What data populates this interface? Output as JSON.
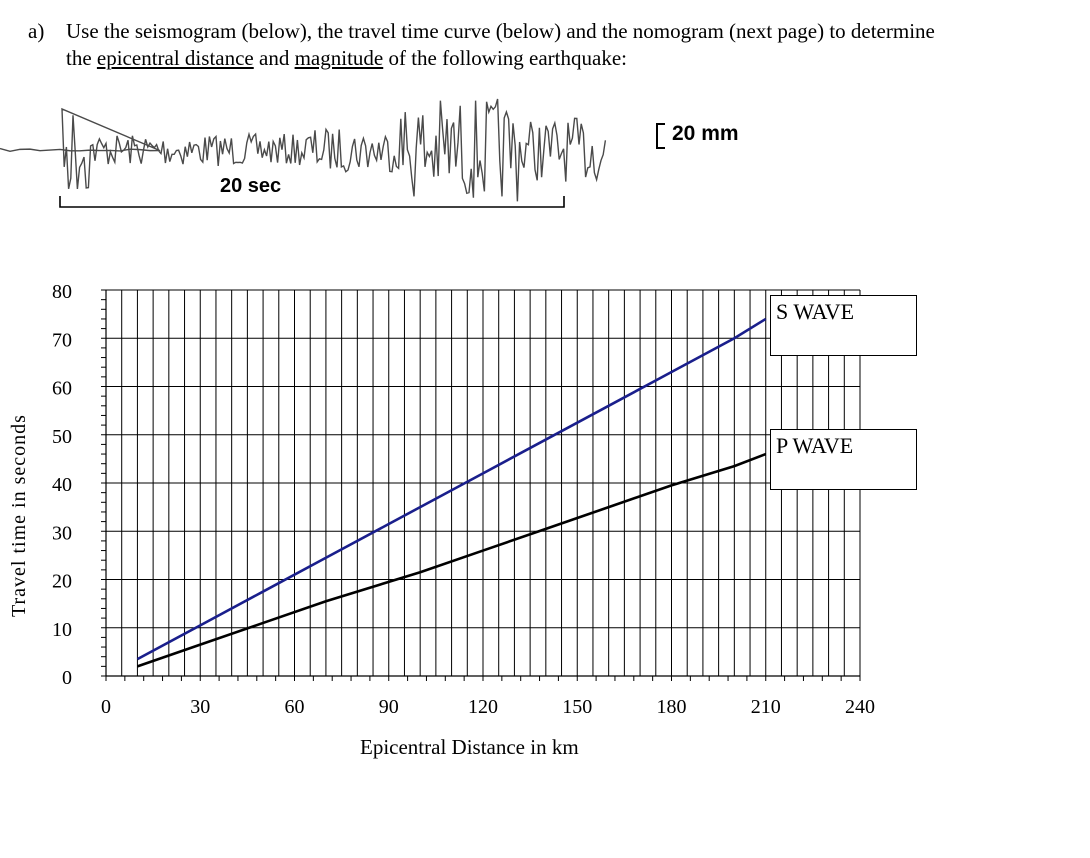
{
  "question": {
    "label": "a)",
    "line1": "Use the seismogram (below), the travel time curve (below) and the nomogram (next page) to determine",
    "line2_prefix": "the ",
    "line2_link1": "epicentral distance",
    "line2_mid": " and ",
    "line2_link2": "magnitude",
    "line2_suffix": " of the following earthquake:"
  },
  "seismogram": {
    "amplitude_scale_label": "20 mm",
    "time_scale_label": "20 sec"
  },
  "chart_data": {
    "type": "line",
    "xlabel": "Epicentral  Distance  in  km",
    "ylabel": "Travel  time  in  seconds",
    "xlim": [
      0,
      240
    ],
    "ylim": [
      0,
      80
    ],
    "xticks": [
      0,
      30,
      60,
      90,
      120,
      150,
      180,
      210,
      240
    ],
    "yticks": [
      0,
      10,
      20,
      30,
      40,
      50,
      60,
      70,
      80
    ],
    "grid": true,
    "series": [
      {
        "name": "S WAVE",
        "color": "#1a1f8c",
        "x": [
          10,
          30,
          50,
          70,
          90,
          100,
          120,
          140,
          160,
          180,
          200,
          210
        ],
        "y": [
          3.5,
          10.5,
          17.5,
          24.5,
          31.5,
          35,
          42,
          49,
          56,
          63,
          70,
          74
        ]
      },
      {
        "name": "P WAVE",
        "color": "#000000",
        "x": [
          10,
          30,
          50,
          70,
          90,
          100,
          120,
          140,
          160,
          180,
          200,
          210
        ],
        "y": [
          2,
          6.5,
          11,
          15.5,
          19.5,
          21.5,
          26,
          30.5,
          35,
          39.5,
          43.5,
          46
        ]
      }
    ]
  }
}
